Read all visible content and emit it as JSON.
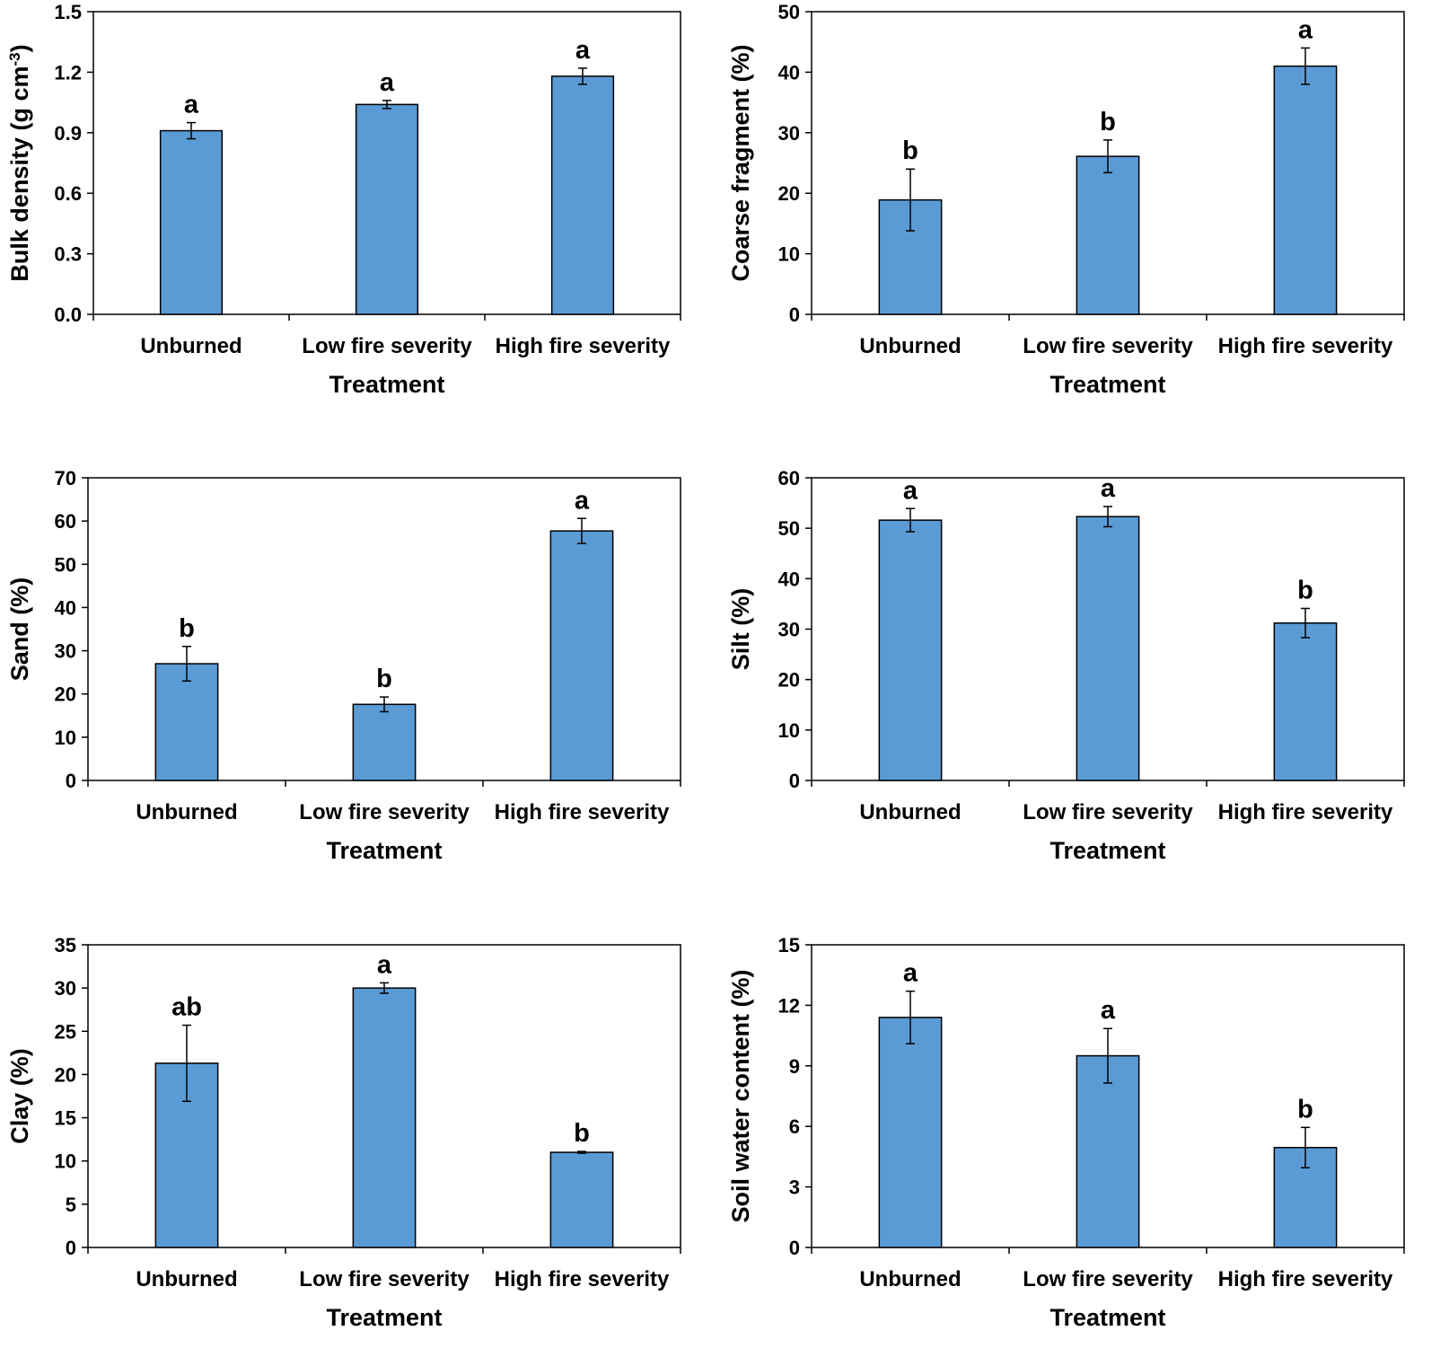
{
  "figure": {
    "bar_color": "#5b9bd5",
    "bar_edge_color": "#000000",
    "axis_color": "#000000"
  },
  "chart_data": [
    {
      "type": "bar",
      "panel": "bulk-density",
      "title": "",
      "xlabel": "Treatment",
      "ylabel": "Bulk density (g cm-3)",
      "ylabel_main": "Bulk density (g cm",
      "ylabel_sup": "-3",
      "ylabel_end": ")",
      "categories": [
        "Unburned",
        "Low fire severity",
        "High fire severity"
      ],
      "values": [
        0.91,
        1.04,
        1.18
      ],
      "errors": [
        0.04,
        0.02,
        0.04
      ],
      "significance": [
        "a",
        "a",
        "a"
      ],
      "ylim": [
        0,
        1.5
      ],
      "yticks": [
        0.0,
        0.3,
        0.6,
        0.9,
        1.2,
        1.5
      ],
      "ytick_labels": [
        "0.0",
        "0.3",
        "0.6",
        "0.9",
        "1.2",
        "1.5"
      ]
    },
    {
      "type": "bar",
      "panel": "coarse-fragment",
      "title": "",
      "xlabel": "Treatment",
      "ylabel": "Coarse fragment (%)",
      "categories": [
        "Unburned",
        "Low fire severity",
        "High fire severity"
      ],
      "values": [
        18.9,
        26.1,
        41.0
      ],
      "errors": [
        5.1,
        2.7,
        3.0
      ],
      "significance": [
        "b",
        "b",
        "a"
      ],
      "ylim": [
        0,
        50
      ],
      "yticks": [
        0,
        10,
        20,
        30,
        40,
        50
      ],
      "ytick_labels": [
        "0",
        "10",
        "20",
        "30",
        "40",
        "50"
      ]
    },
    {
      "type": "bar",
      "panel": "sand",
      "title": "",
      "xlabel": "Treatment",
      "ylabel": "Sand (%)",
      "categories": [
        "Unburned",
        "Low fire severity",
        "High fire severity"
      ],
      "values": [
        27.0,
        17.6,
        57.7
      ],
      "errors": [
        4.0,
        1.7,
        2.9
      ],
      "significance": [
        "b",
        "b",
        "a"
      ],
      "ylim": [
        0,
        70
      ],
      "yticks": [
        0,
        10,
        20,
        30,
        40,
        50,
        60,
        70
      ],
      "ytick_labels": [
        "0",
        "10",
        "20",
        "30",
        "40",
        "50",
        "60",
        "70"
      ]
    },
    {
      "type": "bar",
      "panel": "silt",
      "title": "",
      "xlabel": "Treatment",
      "ylabel": "Silt (%)",
      "categories": [
        "Unburned",
        "Low fire severity",
        "High fire severity"
      ],
      "values": [
        51.6,
        52.3,
        31.2
      ],
      "errors": [
        2.3,
        2.0,
        2.9
      ],
      "significance": [
        "a",
        "a",
        "b"
      ],
      "ylim": [
        0,
        60
      ],
      "yticks": [
        0,
        10,
        20,
        30,
        40,
        50,
        60
      ],
      "ytick_labels": [
        "0",
        "10",
        "20",
        "30",
        "40",
        "50",
        "60"
      ]
    },
    {
      "type": "bar",
      "panel": "clay",
      "title": "",
      "xlabel": "Treatment",
      "ylabel": "Clay (%)",
      "categories": [
        "Unburned",
        "Low fire severity",
        "High fire severity"
      ],
      "values": [
        21.3,
        30.0,
        11.0
      ],
      "errors": [
        4.4,
        0.6,
        0.1
      ],
      "significance": [
        "ab",
        "a",
        "b"
      ],
      "ylim": [
        0,
        35
      ],
      "yticks": [
        0,
        5,
        10,
        15,
        20,
        25,
        30,
        35
      ],
      "ytick_labels": [
        "0",
        "5",
        "10",
        "15",
        "20",
        "25",
        "30",
        "35"
      ]
    },
    {
      "type": "bar",
      "panel": "soil-water-content",
      "title": "",
      "xlabel": "Treatment",
      "ylabel": "Soil water content (%)",
      "categories": [
        "Unburned",
        "Low fire severity",
        "High fire severity"
      ],
      "values": [
        11.4,
        9.5,
        4.95
      ],
      "errors": [
        1.3,
        1.35,
        1.0
      ],
      "significance": [
        "a",
        "a",
        "b"
      ],
      "ylim": [
        0,
        15
      ],
      "yticks": [
        0,
        3,
        6,
        9,
        12,
        15
      ],
      "ytick_labels": [
        "0",
        "3",
        "6",
        "9",
        "12",
        "15"
      ]
    }
  ]
}
